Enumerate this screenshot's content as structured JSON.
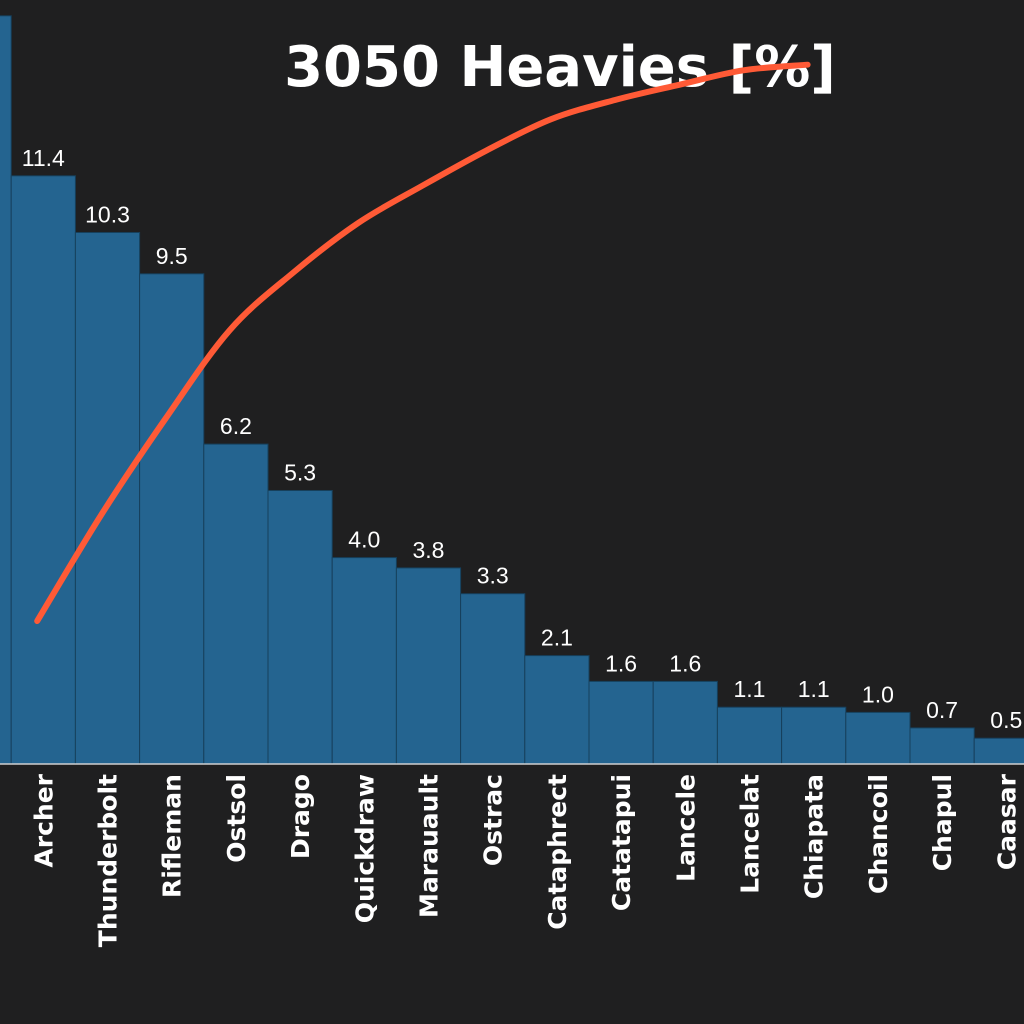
{
  "chart_data": {
    "type": "bar",
    "title": "3050 Heavies [%]",
    "xlabel": "",
    "ylabel": "",
    "categories": [
      "",
      "Archer",
      "Thunderbolt",
      "Rifleman",
      "Ostsol",
      "Drago",
      "Quickdraw",
      "Marauault",
      "Ostrac",
      "Cataphrect",
      "Catatapui",
      "Lancele",
      "Lancelat",
      "Chiapata",
      "Chancoil",
      "Chapul",
      "Caasar"
    ],
    "values": [
      14.5,
      11.4,
      10.3,
      9.5,
      6.2,
      5.3,
      4.0,
      3.8,
      3.3,
      2.1,
      1.6,
      1.6,
      1.1,
      1.1,
      1.0,
      0.7,
      0.5
    ],
    "value_labels": [
      "",
      "11.4",
      "10.3",
      "9.5",
      "6.2",
      "5.3",
      "4.0",
      "3.8",
      "3.3",
      "2.1",
      "1.6",
      "1.6",
      "1.1",
      "1.1",
      "1.0",
      "0.7",
      "0.5"
    ],
    "ylim": [
      0,
      15
    ],
    "cumulative_line": {
      "name": "",
      "color": "#ff5a36",
      "values": [
        19.5,
        34.9,
        48.8,
        61.6,
        70.0,
        77.1,
        82.5,
        87.6,
        92.1,
        94.9,
        97.1,
        99.2,
        100.0
      ],
      "x_categories": [
        0,
        1,
        2,
        3,
        4,
        5,
        6,
        7,
        8,
        9,
        10,
        11,
        12
      ]
    },
    "grid": false,
    "legend": "none"
  },
  "colors": {
    "background": "#1f1f20",
    "bar": "#246490",
    "line": "#ff5a36"
  }
}
